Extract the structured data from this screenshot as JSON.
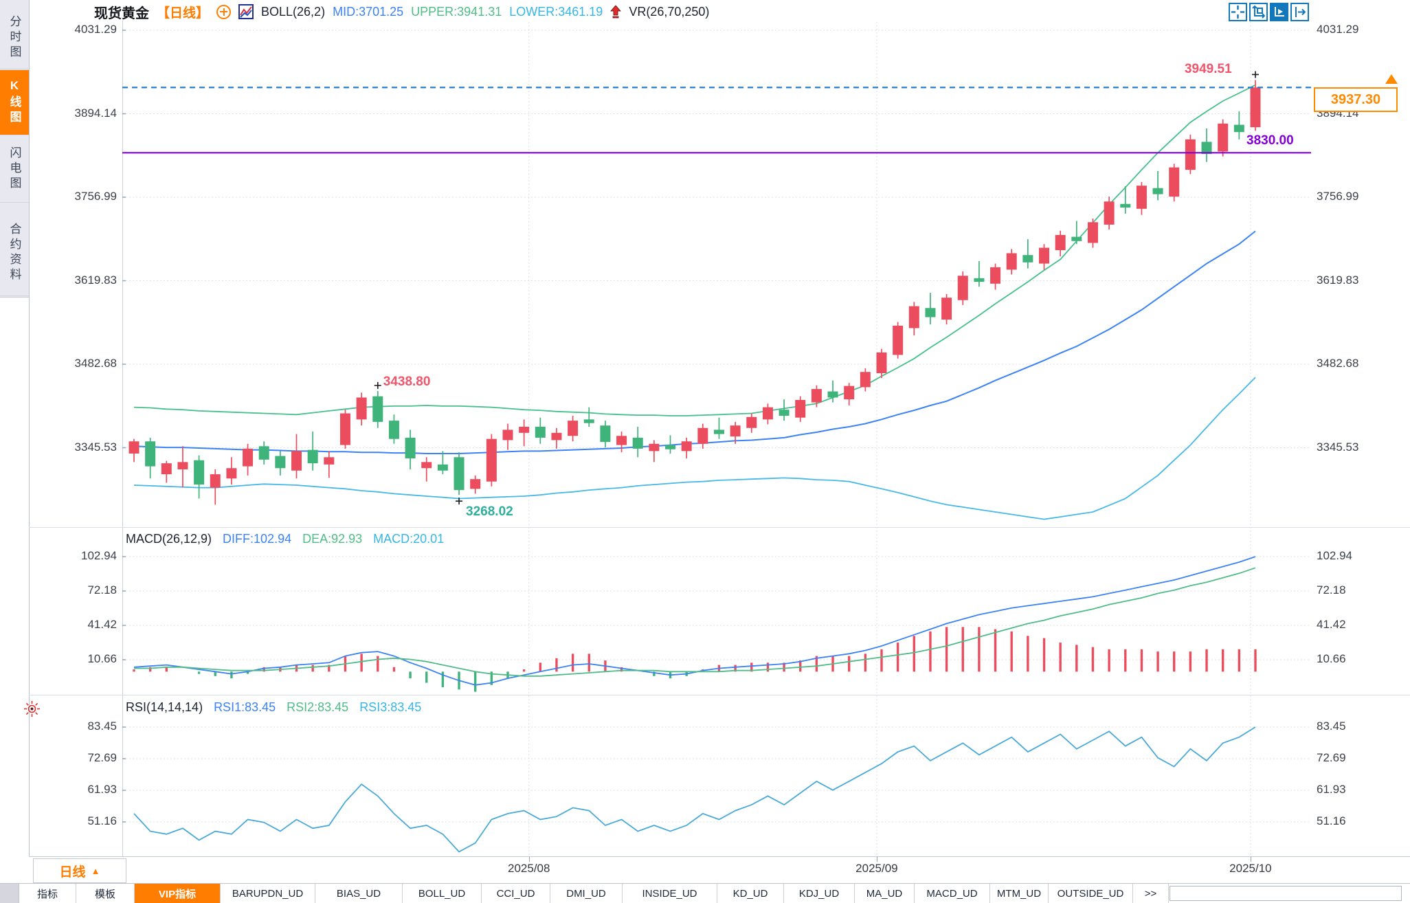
{
  "header": {
    "symbol": "现货黄金",
    "period": "【日线】",
    "boll": "BOLL(26,2)",
    "mid": "MID:3701.25",
    "upper": "UPPER:3941.31",
    "lower": "LOWER:3461.19",
    "vr": "VR(26,70,250)"
  },
  "sidebar": {
    "tabs": [
      {
        "label": "分时图",
        "active": false
      },
      {
        "label": "K线图",
        "active": true
      },
      {
        "label": "闪电图",
        "active": false
      },
      {
        "label": "合约资料",
        "active": false
      }
    ]
  },
  "toolbar": {
    "buttons": [
      {
        "name": "crosshair-icon",
        "active": false
      },
      {
        "name": "fit-axis-icon",
        "active": false
      },
      {
        "name": "auto-scale-icon",
        "active": true
      },
      {
        "name": "scroll-to-latest-icon",
        "active": false
      }
    ]
  },
  "macd_header": {
    "name": "MACD(26,12,9)",
    "diff": "DIFF:102.94",
    "dea": "DEA:92.93",
    "macd": "MACD:20.01"
  },
  "rsi_header": {
    "name": "RSI(14,14,14)",
    "rsi1": "RSI1:83.45",
    "rsi2": "RSI2:83.45",
    "rsi3": "RSI3:83.45"
  },
  "annotations": {
    "latest_high": {
      "text": "3949.51",
      "index": 69
    },
    "high_peak": {
      "text": "3438.80",
      "index": 15
    },
    "low_trough": {
      "text": "3268.02",
      "index": 20
    },
    "current_price": {
      "text": "3937.30"
    },
    "hline_label": {
      "text": "3830.00"
    }
  },
  "period_selector": {
    "label": "日线",
    "arrow": "▲"
  },
  "bottom_tabs": [
    {
      "label": "指标",
      "active": false
    },
    {
      "label": "模板",
      "active": false
    },
    {
      "label": "VIP指标",
      "active": true
    },
    {
      "label": "BARUPDN_UD",
      "active": false
    },
    {
      "label": "BIAS_UD",
      "active": false
    },
    {
      "label": "BOLL_UD",
      "active": false
    },
    {
      "label": "CCI_UD",
      "active": false
    },
    {
      "label": "DMI_UD",
      "active": false
    },
    {
      "label": "INSIDE_UD",
      "active": false
    },
    {
      "label": "KD_UD",
      "active": false
    },
    {
      "label": "KDJ_UD",
      "active": false
    },
    {
      "label": "MA_UD",
      "active": false
    },
    {
      "label": "MACD_UD",
      "active": false
    },
    {
      "label": "MTM_UD",
      "active": false
    },
    {
      "label": "OUTSIDE_UD",
      "active": false
    },
    {
      "label": ">>",
      "active": false
    }
  ],
  "colors": {
    "up": "#ec4d5e",
    "down": "#3eb37a",
    "boll_upper": "#45c08c",
    "boll_mid": "#3b82f6",
    "boll_lower": "#45b8e8",
    "diff_line": "#3b82f6",
    "dea_line": "#4fbc87",
    "rsi_line": "#4aa9d6",
    "hline_purple": "#8400d6",
    "current_dashed_blue": "#2a7fd0",
    "label_red": "#f0556b",
    "label_teal": "#2fae9b",
    "tag_orange": "#ff8a00",
    "accent_orange": "#ff7d00"
  },
  "chart_data": {
    "type": "candlestick",
    "title": "现货黄金 日线 (Spot Gold, Daily K-line with BOLL / MACD / RSI)",
    "legend_position": "top",
    "grid": true,
    "x_axis": {
      "labels": [
        "2025/08",
        "2025/09",
        "2025/10"
      ],
      "label_positions": [
        24.3,
        45.7,
        68.7
      ]
    },
    "main": {
      "ylabels": [
        "4031.29",
        "3894.14",
        "3756.99",
        "3619.83",
        "3482.68",
        "3345.53"
      ],
      "gridline_values": [
        4031.29,
        3894.14,
        3756.99,
        3619.83,
        3482.68,
        3345.53
      ],
      "last_price": 3937.3,
      "hlines": [
        {
          "value": 3830.0,
          "style": "solid",
          "color": "#8400d6"
        },
        {
          "value": 3937.3,
          "style": "dashed",
          "color": "#2a7fd0"
        }
      ],
      "candles": [
        [
          3336,
          3360,
          3322,
          3356
        ],
        [
          3356,
          3362,
          3295,
          3315
        ],
        [
          3302,
          3324,
          3288,
          3320
        ],
        [
          3310,
          3348,
          3280,
          3322
        ],
        [
          3325,
          3333,
          3262,
          3285
        ],
        [
          3280,
          3310,
          3252,
          3302
        ],
        [
          3295,
          3330,
          3285,
          3312
        ],
        [
          3315,
          3352,
          3300,
          3344
        ],
        [
          3348,
          3356,
          3318,
          3326
        ],
        [
          3332,
          3340,
          3300,
          3312
        ],
        [
          3308,
          3368,
          3295,
          3340
        ],
        [
          3342,
          3372,
          3308,
          3320
        ],
        [
          3318,
          3340,
          3296,
          3330
        ],
        [
          3350,
          3408,
          3344,
          3402
        ],
        [
          3392,
          3436,
          3382,
          3428
        ],
        [
          3430,
          3438.8,
          3378,
          3388
        ],
        [
          3390,
          3400,
          3352,
          3360
        ],
        [
          3362,
          3375,
          3310,
          3328
        ],
        [
          3312,
          3330,
          3290,
          3322
        ],
        [
          3318,
          3340,
          3302,
          3308
        ],
        [
          3330,
          3338,
          3268.02,
          3276
        ],
        [
          3278,
          3300,
          3270,
          3294
        ],
        [
          3290,
          3368,
          3282,
          3360
        ],
        [
          3358,
          3385,
          3342,
          3375
        ],
        [
          3370,
          3392,
          3348,
          3380
        ],
        [
          3380,
          3395,
          3352,
          3362
        ],
        [
          3358,
          3378,
          3344,
          3370
        ],
        [
          3365,
          3398,
          3356,
          3390
        ],
        [
          3392,
          3412,
          3380,
          3386
        ],
        [
          3382,
          3390,
          3346,
          3355
        ],
        [
          3350,
          3372,
          3338,
          3365
        ],
        [
          3362,
          3380,
          3330,
          3344
        ],
        [
          3340,
          3358,
          3322,
          3352
        ],
        [
          3350,
          3366,
          3336,
          3343
        ],
        [
          3340,
          3362,
          3328,
          3356
        ],
        [
          3352,
          3385,
          3344,
          3378
        ],
        [
          3375,
          3395,
          3360,
          3368
        ],
        [
          3364,
          3388,
          3352,
          3382
        ],
        [
          3378,
          3402,
          3370,
          3396
        ],
        [
          3392,
          3418,
          3384,
          3412
        ],
        [
          3408,
          3425,
          3390,
          3398
        ],
        [
          3395,
          3430,
          3388,
          3424
        ],
        [
          3420,
          3448,
          3412,
          3442
        ],
        [
          3438,
          3456,
          3420,
          3428
        ],
        [
          3425,
          3452,
          3415,
          3447
        ],
        [
          3445,
          3476,
          3438,
          3470
        ],
        [
          3468,
          3508,
          3460,
          3502
        ],
        [
          3498,
          3552,
          3492,
          3546
        ],
        [
          3542,
          3585,
          3530,
          3578
        ],
        [
          3575,
          3600,
          3548,
          3560
        ],
        [
          3556,
          3598,
          3548,
          3592
        ],
        [
          3588,
          3635,
          3580,
          3628
        ],
        [
          3624,
          3652,
          3610,
          3618
        ],
        [
          3615,
          3648,
          3605,
          3642
        ],
        [
          3638,
          3672,
          3630,
          3665
        ],
        [
          3662,
          3688,
          3640,
          3650
        ],
        [
          3648,
          3680,
          3638,
          3674
        ],
        [
          3670,
          3702,
          3660,
          3695
        ],
        [
          3692,
          3718,
          3680,
          3685
        ],
        [
          3682,
          3722,
          3674,
          3716
        ],
        [
          3712,
          3758,
          3704,
          3750
        ],
        [
          3746,
          3775,
          3730,
          3740
        ],
        [
          3738,
          3782,
          3728,
          3776
        ],
        [
          3772,
          3800,
          3752,
          3762
        ],
        [
          3758,
          3812,
          3750,
          3806
        ],
        [
          3802,
          3860,
          3795,
          3852
        ],
        [
          3848,
          3870,
          3815,
          3828
        ],
        [
          3832,
          3885,
          3824,
          3878
        ],
        [
          3876,
          3898,
          3852,
          3864
        ],
        [
          3872,
          3949.51,
          3866,
          3937.3
        ]
      ],
      "boll": {
        "upper": [
          3412,
          3411,
          3409,
          3408,
          3406,
          3405,
          3404,
          3403,
          3402,
          3401,
          3400,
          3403,
          3406,
          3409,
          3412,
          3413,
          3414,
          3414,
          3415,
          3414,
          3414,
          3413,
          3412,
          3410,
          3408,
          3407,
          3405,
          3404,
          3403,
          3401,
          3400,
          3399,
          3399,
          3398,
          3398,
          3399,
          3400,
          3401,
          3402,
          3406,
          3410,
          3414,
          3418,
          3428,
          3438,
          3448,
          3463,
          3477,
          3492,
          3510,
          3527,
          3545,
          3563,
          3582,
          3600,
          3618,
          3637,
          3655,
          3685,
          3715,
          3745,
          3773,
          3802,
          3830,
          3855,
          3880,
          3898,
          3915,
          3928,
          3941.31
        ],
        "mid": [
          3348,
          3347,
          3346,
          3346,
          3345,
          3344,
          3343,
          3342,
          3342,
          3341,
          3340,
          3340,
          3339,
          3339,
          3338,
          3338,
          3337,
          3337,
          3336,
          3336,
          3336,
          3337,
          3338,
          3339,
          3340,
          3340,
          3341,
          3342,
          3343,
          3344,
          3345,
          3347,
          3348,
          3350,
          3352,
          3353,
          3355,
          3357,
          3358,
          3360,
          3362,
          3367,
          3371,
          3376,
          3380,
          3385,
          3392,
          3400,
          3407,
          3415,
          3422,
          3433,
          3444,
          3456,
          3467,
          3478,
          3489,
          3501,
          3512,
          3526,
          3540,
          3556,
          3572,
          3591,
          3610,
          3629,
          3648,
          3664,
          3680,
          3701.25
        ],
        "lower": [
          3284,
          3283,
          3282,
          3281,
          3280,
          3280,
          3282,
          3284,
          3286,
          3285,
          3284,
          3282,
          3280,
          3278,
          3275,
          3273,
          3270,
          3268,
          3266,
          3264,
          3262,
          3263,
          3264,
          3265,
          3266,
          3268,
          3271,
          3273,
          3276,
          3278,
          3280,
          3283,
          3285,
          3287,
          3289,
          3290,
          3292,
          3293,
          3294,
          3295,
          3296,
          3295,
          3293,
          3292,
          3290,
          3284,
          3278,
          3272,
          3265,
          3258,
          3252,
          3248,
          3244,
          3240,
          3236,
          3232,
          3228,
          3232,
          3236,
          3240,
          3251,
          3262,
          3281,
          3300,
          3325,
          3350,
          3379,
          3408,
          3434,
          3461.19
        ]
      }
    },
    "macd": {
      "ylabels": [
        "102.94",
        "72.18",
        "41.42",
        "10.66"
      ],
      "gridline_values": [
        102.94,
        72.18,
        41.42,
        10.66
      ],
      "diff": [
        4,
        5,
        6,
        4,
        2,
        0,
        -2,
        0,
        3,
        4,
        6,
        7,
        8,
        14,
        17,
        18,
        14,
        8,
        3,
        -3,
        -8,
        -12,
        -10,
        -6,
        -3,
        0,
        3,
        6,
        7,
        5,
        3,
        1,
        -1,
        -3,
        -2,
        1,
        3,
        4,
        5,
        6,
        7,
        9,
        12,
        14,
        16,
        19,
        23,
        28,
        33,
        38,
        43,
        47,
        51,
        54,
        57,
        59,
        61,
        63,
        65,
        67,
        70,
        73,
        76,
        79,
        82,
        86,
        90,
        94,
        98,
        102.94
      ],
      "dea": [
        3,
        3,
        4,
        4,
        3,
        2,
        1,
        1,
        1,
        2,
        3,
        4,
        5,
        7,
        9,
        11,
        12,
        11,
        9,
        6,
        3,
        0,
        -2,
        -3,
        -4,
        -4,
        -3,
        -2,
        -1,
        0,
        1,
        1,
        1,
        0,
        0,
        0,
        0,
        1,
        1,
        2,
        3,
        4,
        5,
        7,
        9,
        11,
        13,
        15,
        17,
        20,
        23,
        27,
        31,
        35,
        39,
        43,
        46,
        50,
        53,
        56,
        60,
        63,
        66,
        70,
        73,
        77,
        80,
        84,
        88,
        92.93
      ],
      "hist": [
        2,
        4,
        4,
        0,
        -2,
        -4,
        -6,
        -2,
        4,
        4,
        6,
        6,
        6,
        14,
        16,
        14,
        4,
        -6,
        -10,
        -14,
        -16,
        -18,
        -12,
        -6,
        2,
        8,
        12,
        16,
        16,
        10,
        4,
        0,
        -4,
        -6,
        -4,
        2,
        6,
        6,
        8,
        8,
        8,
        10,
        14,
        14,
        14,
        16,
        20,
        26,
        32,
        36,
        40,
        40,
        40,
        38,
        36,
        32,
        30,
        26,
        24,
        22,
        20,
        20,
        20,
        18,
        18,
        18,
        20,
        20,
        20,
        20.01
      ]
    },
    "rsi": {
      "ylabels": [
        "83.45",
        "72.69",
        "61.93",
        "51.16"
      ],
      "gridline_values": [
        83.45,
        72.69,
        61.93,
        51.16
      ],
      "rsi": [
        54,
        48,
        47,
        49,
        45,
        48,
        47,
        52,
        51,
        48,
        52,
        49,
        50,
        58,
        64,
        60,
        54,
        49,
        50,
        47,
        41,
        44,
        52,
        54,
        55,
        52,
        53,
        56,
        55,
        50,
        52,
        48,
        50,
        48,
        50,
        54,
        52,
        55,
        57,
        60,
        57,
        61,
        65,
        62,
        65,
        68,
        71,
        75,
        77,
        72,
        75,
        78,
        74,
        77,
        80,
        75,
        78,
        81,
        76,
        79,
        82,
        77,
        80,
        73,
        70,
        76,
        72,
        78,
        80,
        83.45
      ]
    }
  }
}
